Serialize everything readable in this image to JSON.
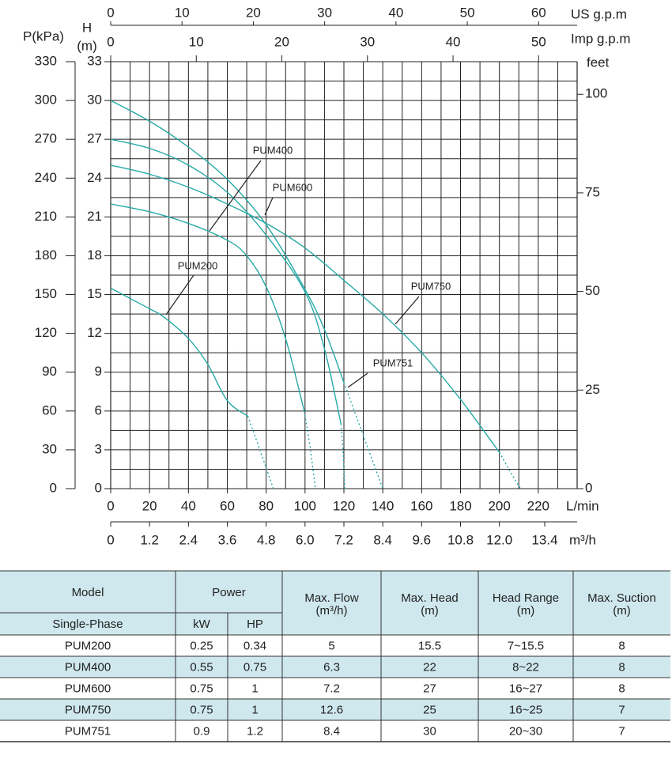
{
  "chart_data": {
    "type": "line",
    "p_label": "P(kPa)",
    "h_label": "H",
    "h_unit": "(m)",
    "feet_label": "feet",
    "us_label": "US g.p.m",
    "imp_label": "Imp g.p.m",
    "x_label": "L/min",
    "m3h_label": "m³/h",
    "xlim": [
      0,
      240
    ],
    "xticks": [
      0,
      20,
      40,
      60,
      80,
      100,
      120,
      140,
      160,
      180,
      200,
      220
    ],
    "ylim": [
      0,
      33
    ],
    "yticks": [
      0,
      3,
      6,
      9,
      12,
      15,
      18,
      21,
      24,
      27,
      30,
      33
    ],
    "plim": [
      0,
      330
    ],
    "pticks": [
      0,
      30,
      60,
      90,
      120,
      150,
      180,
      210,
      240,
      270,
      300,
      330
    ],
    "y2lim": [
      0,
      108.27
    ],
    "y2ticks": [
      0,
      25,
      50,
      75,
      100
    ],
    "uslim": [
      0,
      65.4
    ],
    "usticks": [
      0,
      10,
      20,
      30,
      40,
      50,
      60
    ],
    "implim": [
      0,
      54.5
    ],
    "impticks": [
      0,
      10,
      20,
      30,
      40,
      50
    ],
    "m3hlim": [
      0,
      14.4
    ],
    "m3hticks": [
      0,
      {
        "value": 1.2,
        "label": "1.2"
      },
      {
        "value": 2.4,
        "label": "2.4"
      },
      {
        "value": 3.6,
        "label": "3.6"
      },
      {
        "value": 4.8,
        "label": "4.8"
      },
      {
        "value": 6,
        "label": "6.0"
      },
      {
        "value": 7.2,
        "label": "7.2"
      },
      {
        "value": 8.4,
        "label": "8.4"
      },
      {
        "value": 9.6,
        "label": "9.6"
      },
      {
        "value": 10.8,
        "label": "10.8"
      },
      {
        "value": 12,
        "label": "12.0"
      },
      {
        "value": 13.4,
        "label": "13.4"
      }
    ],
    "grid": true,
    "color": "#26a9a5",
    "series": [
      {
        "name": "PUM200",
        "x": [
          0,
          10,
          20,
          27,
          40,
          50,
          60,
          70.6
        ],
        "values": [
          15.5,
          14.7,
          13.9,
          13.3,
          11.6,
          9.6,
          6.8,
          5.6
        ],
        "dotted": {
          "x": [
            70.6,
            77,
            83.7
          ],
          "values": [
            5.6,
            2.9,
            0
          ]
        }
      },
      {
        "name": "PUM400",
        "x": [
          0,
          20,
          40,
          60,
          70,
          80,
          90,
          99.6
        ],
        "values": [
          22,
          21.4,
          20.5,
          19.2,
          18.0,
          15.6,
          11.6,
          6
        ],
        "dotted": {
          "x": [
            99.6,
            102.8,
            105.3
          ],
          "values": [
            6,
            3,
            0
          ]
        }
      },
      {
        "name": "PUM600",
        "x": [
          0,
          20,
          40,
          60,
          80,
          100,
          110,
          118.5
        ],
        "values": [
          27,
          26.3,
          25,
          22.9,
          19.6,
          15.2,
          10.8,
          5
        ],
        "dotted": {
          "x": [
            118.5,
            119.7,
            120.4
          ],
          "values": [
            5,
            2.5,
            0
          ]
        }
      },
      {
        "name": "PUM750",
        "x": [
          0,
          20,
          40,
          60,
          80,
          100,
          120,
          140,
          160,
          180,
          200
        ],
        "values": [
          25,
          24.3,
          23.3,
          22,
          20.5,
          18.6,
          16.1,
          13.5,
          10.5,
          6.9,
          2.8
        ],
        "dotted": {
          "x": [
            200,
            206,
            210.8
          ],
          "values": [
            2.8,
            1.2,
            0
          ]
        }
      },
      {
        "name": "PUM751",
        "x": [
          0,
          20,
          40,
          60,
          80,
          100,
          110,
          120
        ],
        "values": [
          30,
          28.4,
          26.4,
          23.9,
          20.4,
          15.4,
          12.3,
          8.2
        ],
        "dotted": {
          "x": [
            120,
            130,
            140
          ],
          "values": [
            8.2,
            4.1,
            0
          ]
        }
      }
    ]
  },
  "table": {
    "header": {
      "model": "Model",
      "phase": "Single-Phase",
      "power": "Power",
      "kw": "kW",
      "hp": "HP",
      "flow": "Max. Flow",
      "flow_unit": "(m³/h)",
      "head": "Max. Head",
      "head_unit": "(m)",
      "range": "Head Range",
      "range_unit": "(m)",
      "suction": "Max. Suction",
      "suction_unit": "(m)"
    },
    "rows": [
      [
        "PUM200",
        0.25,
        0.34,
        5,
        15.5,
        "7~15.5",
        8
      ],
      [
        "PUM400",
        0.55,
        0.75,
        6.3,
        22,
        "8~22",
        8
      ],
      [
        "PUM600",
        0.75,
        1,
        7.2,
        27,
        "16~27",
        8
      ],
      [
        "PUM750",
        0.75,
        1,
        12.6,
        25,
        "16~25",
        7
      ],
      [
        "PUM751",
        0.9,
        1.2,
        8.4,
        30,
        "20~30",
        7
      ]
    ]
  }
}
